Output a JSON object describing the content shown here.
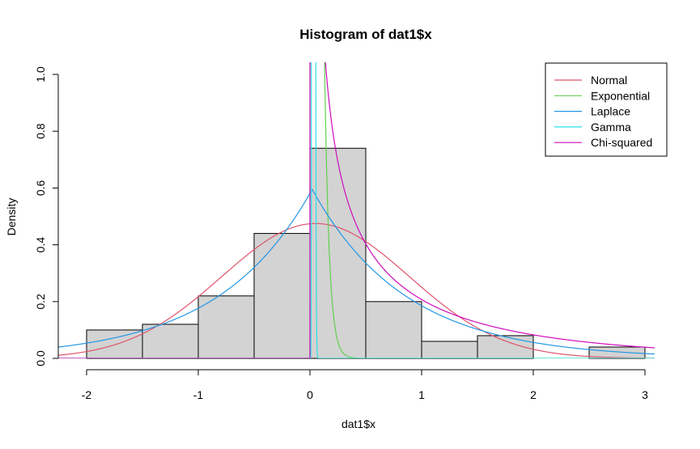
{
  "chart_data": {
    "type": "bar",
    "title": "Histogram of dat1$x",
    "xlabel": "dat1$x",
    "ylabel": "Density",
    "xlim": [
      -2.25,
      3.0
    ],
    "ylim": [
      0,
      1.0
    ],
    "x_ticks": [
      -2,
      -1,
      0,
      1,
      2,
      3
    ],
    "y_ticks": [
      0.0,
      0.2,
      0.4,
      0.6,
      0.8,
      1.0
    ],
    "x_tick_labels": [
      "-2",
      "-1",
      "0",
      "1",
      "2",
      "3"
    ],
    "y_tick_labels": [
      "0.0",
      "0.2",
      "0.4",
      "0.6",
      "0.8",
      "1.0"
    ],
    "bin_edges": [
      -2.0,
      -1.5,
      -1.0,
      -0.5,
      0.0,
      0.5,
      1.0,
      1.5,
      2.0,
      2.5,
      3.0
    ],
    "densities": [
      0.1,
      0.12,
      0.22,
      0.44,
      0.74,
      0.2,
      0.06,
      0.08,
      0.0,
      0.04
    ],
    "bar_fill": "#d3d3d3",
    "bar_stroke": "#000000",
    "legend_position": "top-right",
    "series": [
      {
        "name": "Normal",
        "color": "#DF536B",
        "distribution": "normal",
        "params": {
          "mean": 0.05,
          "sd": 0.84
        }
      },
      {
        "name": "Exponential",
        "color": "#61D04F",
        "distribution": "exponential",
        "params": {
          "rate": 24
        }
      },
      {
        "name": "Laplace",
        "color": "#2297E6",
        "distribution": "laplace",
        "params": {
          "location": 0.02,
          "scale": 0.84
        }
      },
      {
        "name": "Gamma",
        "color": "#28E2E5",
        "distribution": "gamma",
        "params": {
          "shape": 18,
          "rate": 600
        }
      },
      {
        "name": "Chi-squared",
        "color": "#CD0BBC",
        "distribution": "chisq",
        "params": {
          "df": 0.8
        }
      }
    ]
  }
}
